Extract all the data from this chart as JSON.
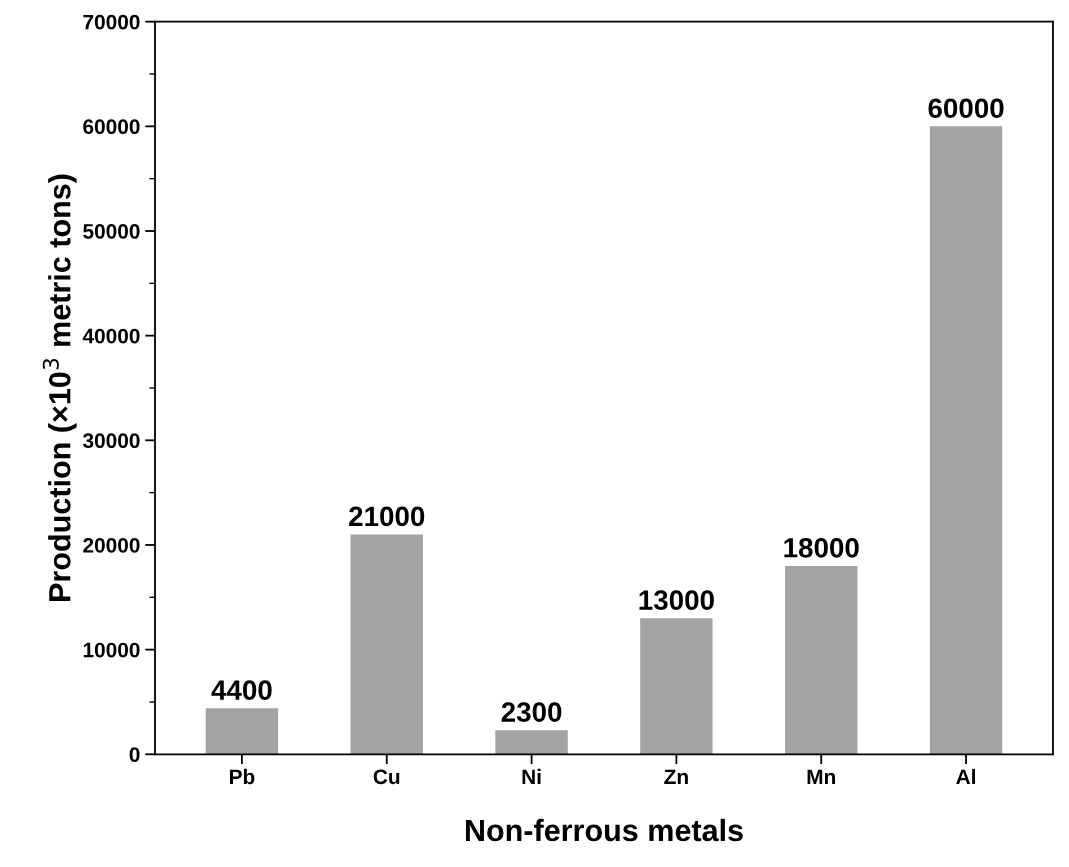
{
  "chart_data": {
    "type": "bar",
    "xlabel": "Non-ferrous metals",
    "ylabel": "Production (×10$^{3}$ metric tons)",
    "categories": [
      "Pb",
      "Cu",
      "Ni",
      "Zn",
      "Mn",
      "Al"
    ],
    "values": [
      4400,
      21000,
      2300,
      13000,
      18000,
      60000
    ],
    "color": "#a3a3a3",
    "data_labels": true,
    "ylim": [
      0,
      70000
    ],
    "yticks": [
      0,
      10000,
      20000,
      30000,
      40000,
      50000,
      60000,
      70000
    ],
    "grid": false,
    "legend": false
  }
}
